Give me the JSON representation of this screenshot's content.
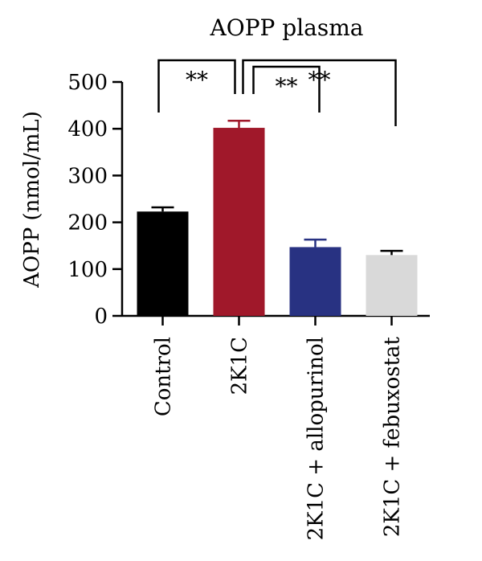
{
  "chart_data": {
    "type": "bar",
    "title": "AOPP plasma",
    "ylabel": "AOPP (nmol/mL)",
    "xlabel": "",
    "ylim": [
      0,
      500
    ],
    "yticks": [
      0,
      100,
      200,
      300,
      400,
      500
    ],
    "categories": [
      "Control",
      "2K1C",
      "2K1C + allopurinol",
      "2K1C + febuxostat"
    ],
    "values": [
      223,
      402,
      147,
      130
    ],
    "errors": [
      9,
      15,
      16,
      9
    ],
    "colors": [
      "#000000",
      "#a0182a",
      "#283282",
      "#d9d9d9"
    ],
    "error_colors": [
      "#000000",
      "#a0182a",
      "#283282",
      "#000000"
    ],
    "significance": [
      {
        "from": "Control",
        "to": "2K1C",
        "label": "**"
      },
      {
        "from": "2K1C",
        "to": "2K1C + allopurinol",
        "label": "**"
      },
      {
        "from": "2K1C",
        "to": "2K1C + febuxostat",
        "label": "**"
      }
    ],
    "grid": false,
    "legend": "none"
  }
}
